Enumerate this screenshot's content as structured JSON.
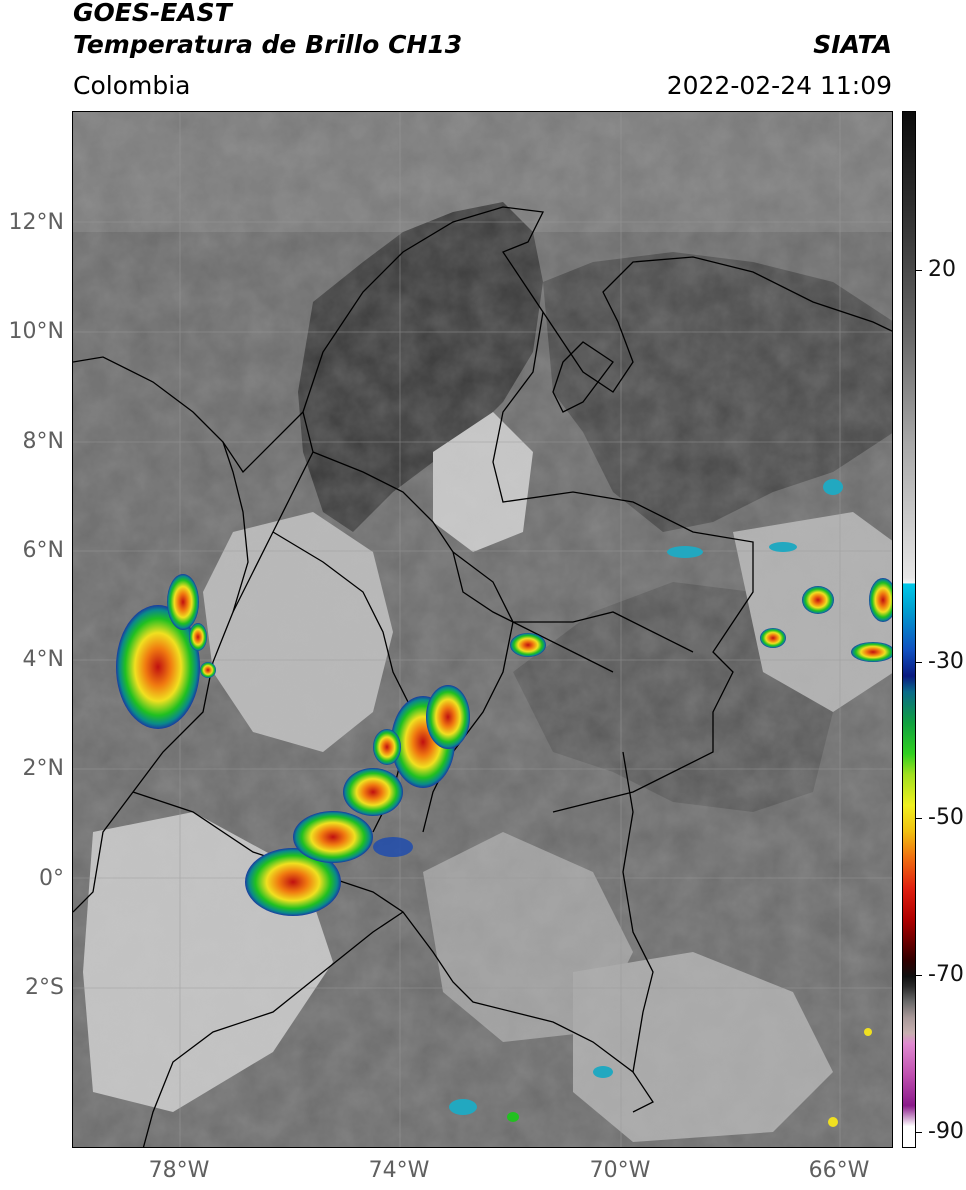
{
  "header": {
    "title_line1": "GOES-EAST",
    "title_line2": "Temperatura de Brillo CH13",
    "brand": "SIATA",
    "region": "Colombia",
    "datetime": "2022-02-24 11:09"
  },
  "map": {
    "lat_labels": [
      "12°N",
      "10°N",
      "8°N",
      "6°N",
      "4°N",
      "2°N",
      "0°",
      "2°S"
    ],
    "lon_labels": [
      "78°W",
      "74°W",
      "70°W",
      "66°W"
    ]
  },
  "colorbar": {
    "labels": [
      "20",
      "-30",
      "-50",
      "-70",
      "-90"
    ],
    "colors": {
      "warm_top": "#111111",
      "cyan": "#00b4d8",
      "blue": "#1030b0",
      "green": "#22c020",
      "yellow": "#f0e020",
      "orange": "#f08010",
      "red": "#d01010",
      "dark_red": "#500000",
      "pink": "#e070c0",
      "purple": "#8a1a8a"
    }
  }
}
